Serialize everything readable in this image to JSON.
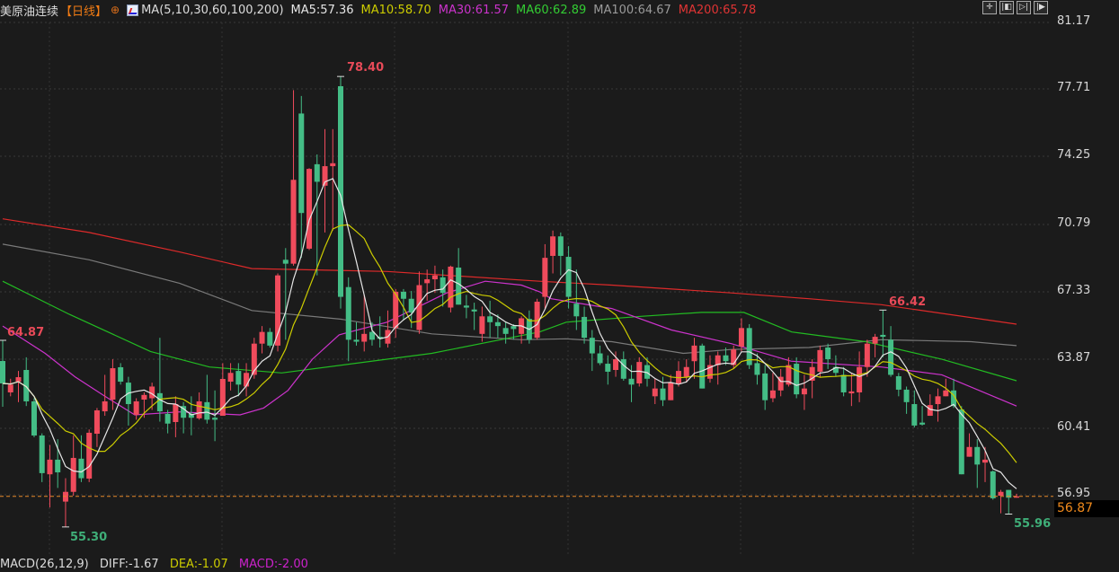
{
  "header": {
    "title": "美原油连续",
    "period": "【日线】",
    "add_icon": "circle-plus-icon",
    "ma_icon": "indicator-chart-icon",
    "ma_params": "MA(5,10,30,60,100,200)",
    "ma_values": [
      {
        "label": "MA5:57.36",
        "color": "#e6e6e6"
      },
      {
        "label": "MA10:58.70",
        "color": "#cccc00"
      },
      {
        "label": "MA30:61.57",
        "color": "#cc33cc"
      },
      {
        "label": "MA60:62.89",
        "color": "#33cc33"
      },
      {
        "label": "MA100:64.67",
        "color": "#9a9a9a"
      },
      {
        "label": "MA200:65.78",
        "color": "#e03434"
      }
    ]
  },
  "toolbar": [
    {
      "icon": "crosshair-icon",
      "glyph": "✛"
    },
    {
      "icon": "zoom-range-icon",
      "glyph": "|◧"
    },
    {
      "icon": "play-step-icon",
      "glyph": "▷|"
    },
    {
      "icon": "move-right-icon",
      "glyph": "|▶"
    }
  ],
  "price_axis": [
    "81.17",
    "77.71",
    "74.25",
    "70.79",
    "67.33",
    "63.87",
    "60.41",
    "56.95"
  ],
  "current_price": "56.87",
  "annotations": {
    "high": "78.40",
    "left_high": "64.87",
    "recent_high": "66.42",
    "low": "55.30",
    "recent_low": "55.96"
  },
  "macd": {
    "params": "MACD(26,12,9)",
    "diff": "DIFF:-1.67",
    "dea": "DEA:-1.07",
    "macd": "MACD:-2.00"
  },
  "colors": {
    "up": "#f04b5c",
    "down": "#44bd86",
    "ma5": "#e6e6e6",
    "ma10": "#cccc00",
    "ma30": "#cc33cc",
    "ma60": "#22bb22",
    "ma100": "#7a7a7a",
    "ma200": "#dd2a2a",
    "current_line": "#e8892a",
    "background": "#1b1b1b"
  },
  "chart_data": {
    "type": "candlestick",
    "ylim": [
      81.17,
      56.95
    ],
    "ohlc": [
      [
        63.81,
        64.87,
        61.46,
        62.66
      ],
      [
        62.2,
        62.9,
        62.0,
        62.6
      ],
      [
        62.75,
        63.3,
        61.7,
        62.98
      ],
      [
        63.35,
        64.0,
        61.5,
        61.74
      ],
      [
        61.74,
        61.9,
        59.9,
        59.99
      ],
      [
        59.99,
        60.1,
        57.6,
        58.06
      ],
      [
        58.0,
        59.5,
        56.3,
        58.75
      ],
      [
        58.75,
        59.8,
        57.3,
        58.1
      ],
      [
        56.6,
        57.8,
        55.3,
        57.1
      ],
      [
        57.1,
        60.0,
        56.9,
        58.84
      ],
      [
        58.8,
        60.0,
        57.6,
        57.8
      ],
      [
        57.78,
        60.3,
        57.6,
        60.13
      ],
      [
        60.08,
        61.4,
        59.4,
        61.28
      ],
      [
        61.23,
        63.1,
        61.0,
        61.74
      ],
      [
        61.83,
        63.9,
        61.3,
        63.44
      ],
      [
        63.49,
        63.7,
        62.6,
        62.75
      ],
      [
        62.7,
        63.0,
        60.5,
        61.6
      ],
      [
        61.05,
        61.9,
        60.8,
        61.74
      ],
      [
        61.83,
        62.2,
        60.9,
        62.07
      ],
      [
        61.9,
        62.7,
        61.3,
        62.5
      ],
      [
        62.16,
        65.0,
        60.7,
        61.23
      ],
      [
        61.1,
        61.3,
        60.1,
        60.6
      ],
      [
        60.68,
        62.0,
        59.9,
        61.6
      ],
      [
        61.5,
        61.7,
        60.1,
        60.9
      ],
      [
        61.1,
        62.0,
        60.0,
        60.9
      ],
      [
        60.87,
        62.2,
        60.8,
        61.74
      ],
      [
        61.7,
        63.1,
        60.6,
        60.8
      ],
      [
        60.9,
        62.3,
        59.7,
        60.8
      ],
      [
        61.0,
        63.7,
        61.0,
        62.89
      ],
      [
        62.75,
        63.7,
        62.3,
        63.2
      ],
      [
        63.3,
        63.7,
        62.0,
        62.6
      ],
      [
        62.5,
        63.7,
        62.0,
        63.2
      ],
      [
        63.1,
        65.0,
        62.9,
        64.7
      ],
      [
        64.7,
        65.6,
        64.2,
        65.3
      ],
      [
        65.3,
        65.5,
        64.5,
        64.6
      ],
      [
        64.6,
        68.3,
        64.3,
        68.2
      ],
      [
        69.0,
        69.6,
        64.9,
        68.8
      ],
      [
        68.8,
        77.7,
        68.7,
        73.1
      ],
      [
        76.5,
        77.4,
        69.1,
        71.4
      ],
      [
        69.57,
        73.7,
        69.5,
        73.66
      ],
      [
        73.9,
        74.4,
        68.2,
        73.0
      ],
      [
        72.8,
        75.7,
        70.4,
        73.8
      ],
      [
        73.8,
        75.7,
        70.5,
        73.95
      ],
      [
        77.9,
        78.4,
        66.5,
        67.1
      ],
      [
        67.6,
        68.1,
        63.8,
        64.9
      ],
      [
        64.9,
        65.8,
        64.6,
        64.8
      ],
      [
        64.8,
        67.2,
        64.3,
        65.2
      ],
      [
        65.3,
        65.8,
        64.6,
        64.9
      ],
      [
        65.05,
        66.1,
        64.5,
        64.95
      ],
      [
        64.7,
        66.4,
        64.5,
        65.4
      ],
      [
        65.5,
        67.5,
        65.0,
        67.36
      ],
      [
        67.36,
        67.5,
        65.9,
        67.0
      ],
      [
        67.0,
        67.4,
        65.5,
        66.3
      ],
      [
        65.4,
        68.4,
        65.2,
        67.7
      ],
      [
        67.8,
        68.5,
        66.9,
        68.0
      ],
      [
        68.0,
        68.7,
        67.3,
        68.2
      ],
      [
        68.1,
        68.5,
        66.6,
        67.3
      ],
      [
        66.55,
        68.7,
        66.3,
        68.65
      ],
      [
        68.6,
        69.6,
        66.7,
        66.7
      ],
      [
        66.65,
        67.2,
        66.0,
        66.55
      ],
      [
        66.45,
        66.8,
        65.4,
        66.35
      ],
      [
        65.2,
        66.6,
        64.8,
        66.1
      ],
      [
        66.1,
        66.9,
        65.0,
        65.8
      ],
      [
        65.8,
        66.2,
        65.0,
        65.6
      ],
      [
        65.5,
        65.8,
        64.7,
        65.2
      ],
      [
        65.6,
        65.7,
        64.9,
        65.45
      ],
      [
        65.2,
        66.1,
        64.7,
        66.0
      ],
      [
        65.97,
        66.4,
        64.7,
        64.9
      ],
      [
        65.0,
        67.0,
        64.9,
        66.85
      ],
      [
        67.1,
        69.8,
        66.5,
        69.1
      ],
      [
        69.2,
        70.5,
        68.3,
        70.2
      ],
      [
        70.2,
        70.4,
        68.2,
        69.2
      ],
      [
        69.15,
        69.7,
        66.5,
        67.1
      ],
      [
        66.75,
        68.5,
        65.4,
        66.1
      ],
      [
        66.07,
        66.6,
        64.7,
        65.0
      ],
      [
        65.0,
        65.4,
        63.3,
        64.2
      ],
      [
        64.2,
        64.6,
        63.6,
        63.7
      ],
      [
        63.67,
        64.1,
        62.6,
        63.26
      ],
      [
        63.35,
        64.3,
        63.0,
        63.9
      ],
      [
        63.9,
        64.3,
        62.8,
        62.9
      ],
      [
        62.9,
        63.6,
        61.7,
        62.6
      ],
      [
        62.66,
        64.0,
        62.5,
        63.76
      ],
      [
        63.6,
        64.0,
        62.5,
        62.9
      ],
      [
        62.0,
        62.9,
        61.6,
        62.4
      ],
      [
        62.4,
        63.0,
        61.5,
        61.8
      ],
      [
        61.8,
        63.1,
        61.8,
        62.7
      ],
      [
        62.66,
        63.8,
        62.5,
        63.3
      ],
      [
        63.0,
        63.9,
        62.7,
        63.5
      ],
      [
        63.8,
        65.0,
        62.9,
        64.6
      ],
      [
        64.6,
        64.7,
        62.4,
        62.4
      ],
      [
        62.9,
        64.1,
        62.7,
        63.6
      ],
      [
        63.6,
        64.3,
        62.6,
        64.1
      ],
      [
        64.1,
        64.5,
        63.6,
        63.8
      ],
      [
        63.6,
        64.6,
        63.4,
        64.4
      ],
      [
        64.55,
        66.0,
        64.3,
        65.5
      ],
      [
        65.5,
        65.7,
        63.4,
        63.6
      ],
      [
        63.7,
        64.2,
        62.6,
        63.1
      ],
      [
        63.17,
        63.6,
        61.3,
        61.8
      ],
      [
        61.9,
        63.2,
        61.7,
        62.3
      ],
      [
        62.3,
        63.4,
        62.0,
        63.0
      ],
      [
        62.6,
        64.0,
        62.5,
        63.6
      ],
      [
        63.67,
        64.0,
        61.9,
        62.1
      ],
      [
        62.1,
        63.1,
        61.3,
        62.4
      ],
      [
        62.8,
        63.9,
        61.9,
        63.5
      ],
      [
        63.26,
        64.6,
        63.0,
        64.37
      ],
      [
        64.5,
        64.7,
        63.4,
        63.9
      ],
      [
        63.5,
        64.1,
        63.0,
        63.2
      ],
      [
        63.1,
        63.5,
        62.0,
        62.2
      ],
      [
        62.15,
        63.2,
        61.5,
        62.25
      ],
      [
        62.2,
        64.3,
        61.7,
        63.5
      ],
      [
        63.5,
        64.9,
        63.0,
        64.7
      ],
      [
        64.7,
        65.2,
        64.0,
        65.05
      ],
      [
        65.15,
        66.42,
        64.0,
        65.05
      ],
      [
        64.9,
        65.6,
        63.0,
        63.1
      ],
      [
        63.03,
        63.2,
        62.0,
        62.34
      ],
      [
        62.34,
        62.5,
        61.1,
        61.7
      ],
      [
        61.6,
        62.3,
        60.4,
        60.5
      ],
      [
        60.65,
        61.5,
        60.5,
        60.55
      ],
      [
        61.0,
        62.1,
        61.0,
        61.55
      ],
      [
        61.6,
        62.4,
        60.7,
        62.0
      ],
      [
        62.0,
        62.9,
        62.0,
        62.3
      ],
      [
        62.3,
        62.9,
        61.4,
        61.5
      ],
      [
        61.33,
        61.5,
        58.0,
        58.0
      ],
      [
        58.9,
        60.1,
        58.9,
        59.4
      ],
      [
        59.4,
        59.8,
        57.3,
        58.5
      ],
      [
        58.6,
        59.4,
        57.6,
        58.75
      ],
      [
        58.15,
        58.2,
        56.7,
        56.77
      ],
      [
        56.9,
        57.2,
        56.0,
        57.1
      ],
      [
        57.2,
        57.2,
        55.96,
        56.8
      ],
      [
        56.8,
        57.0,
        56.8,
        56.87
      ]
    ],
    "ma_curves": {
      "ma30": [
        [
          0,
          65.6
        ],
        [
          5.4,
          64.2
        ],
        [
          9.2,
          63.0
        ],
        [
          13,
          62.0
        ],
        [
          16.8,
          61.05
        ],
        [
          22.5,
          61.2
        ],
        [
          30.2,
          61.05
        ],
        [
          33.2,
          61.4
        ],
        [
          36.3,
          62.3
        ],
        [
          39.4,
          63.9
        ],
        [
          42.8,
          65.15
        ],
        [
          48.9,
          65.8
        ],
        [
          56.5,
          67.3
        ],
        [
          61.4,
          67.9
        ],
        [
          66,
          67.7
        ],
        [
          68.3,
          67.36
        ],
        [
          69.8,
          67.0
        ],
        [
          77.5,
          66.5
        ],
        [
          85.1,
          65.4
        ],
        [
          92.7,
          64.7
        ],
        [
          100.3,
          63.8
        ],
        [
          111.8,
          63.5
        ],
        [
          119.5,
          63.1
        ],
        [
          129,
          61.5
        ]
      ],
      "ma60": [
        [
          0,
          67.9
        ],
        [
          8.5,
          66.2
        ],
        [
          18.8,
          64.3
        ],
        [
          26.3,
          63.5
        ],
        [
          35.5,
          63.2
        ],
        [
          54.6,
          64.2
        ],
        [
          68.3,
          65.3
        ],
        [
          71.7,
          65.8
        ],
        [
          81.2,
          66.1
        ],
        [
          88.9,
          66.3
        ],
        [
          94.3,
          66.3
        ],
        [
          100.4,
          65.3
        ],
        [
          109.8,
          64.8
        ],
        [
          119.5,
          63.9
        ],
        [
          129,
          62.8
        ]
      ],
      "ma100": [
        [
          0,
          69.8
        ],
        [
          11,
          69.0
        ],
        [
          22.5,
          67.8
        ],
        [
          31.7,
          66.4
        ],
        [
          43.1,
          65.95
        ],
        [
          54.6,
          65.2
        ],
        [
          66,
          64.9
        ],
        [
          71.7,
          64.95
        ],
        [
          77.5,
          64.8
        ],
        [
          86.6,
          64.2
        ],
        [
          92.7,
          64.4
        ],
        [
          102.6,
          64.5
        ],
        [
          111.8,
          64.9
        ],
        [
          123.2,
          64.8
        ],
        [
          129,
          64.6
        ]
      ],
      "ma200": [
        [
          0,
          71.1
        ],
        [
          11,
          70.4
        ],
        [
          22.5,
          69.4
        ],
        [
          31.7,
          68.55
        ],
        [
          48.9,
          68.4
        ],
        [
          68.3,
          67.9
        ],
        [
          77.5,
          67.7
        ],
        [
          92.7,
          67.3
        ],
        [
          102.6,
          67.0
        ],
        [
          111.8,
          66.7
        ],
        [
          129,
          65.7
        ]
      ]
    }
  }
}
